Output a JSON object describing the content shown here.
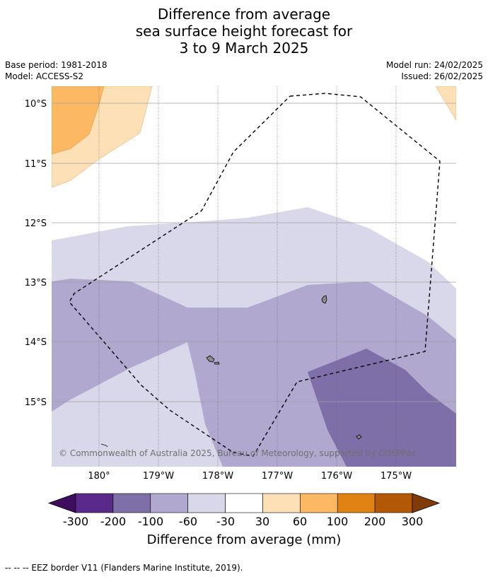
{
  "title": {
    "line1": "Difference from average",
    "line2": "sea surface height forecast for",
    "line3": "3 to 9 March 2025"
  },
  "meta": {
    "base_period": "Base period: 1981-2018",
    "model": "Model: ACCESS-S2",
    "model_run": "Model run: 24/02/2025",
    "issued": "Issued: 26/02/2025"
  },
  "map": {
    "lat_labels": [
      "10°S",
      "11°S",
      "12°S",
      "13°S",
      "14°S",
      "15°S"
    ],
    "lon_labels": [
      "180°",
      "179°W",
      "178°W",
      "177°W",
      "176°W",
      "175°W"
    ],
    "copyright": "© Commonwealth of Australia 2025, Bureau of Meteorology, supported by COSPPac"
  },
  "colorbar": {
    "ticks": [
      "-300",
      "-200",
      "-100",
      "-60",
      "-30",
      "30",
      "60",
      "100",
      "200",
      "300"
    ],
    "colors": [
      "#3f0d5e",
      "#5a2a8a",
      "#7f6fa8",
      "#b0a8cf",
      "#d8d8ea",
      "#ffffff",
      "#fee0b6",
      "#fdb863",
      "#e08214",
      "#b35806",
      "#7f3b08"
    ],
    "title": "Difference from average (mm)"
  },
  "legend": {
    "eez_text": "--  --  -- EEZ border V11 (Flanders Marine Institute, 2019)."
  }
}
